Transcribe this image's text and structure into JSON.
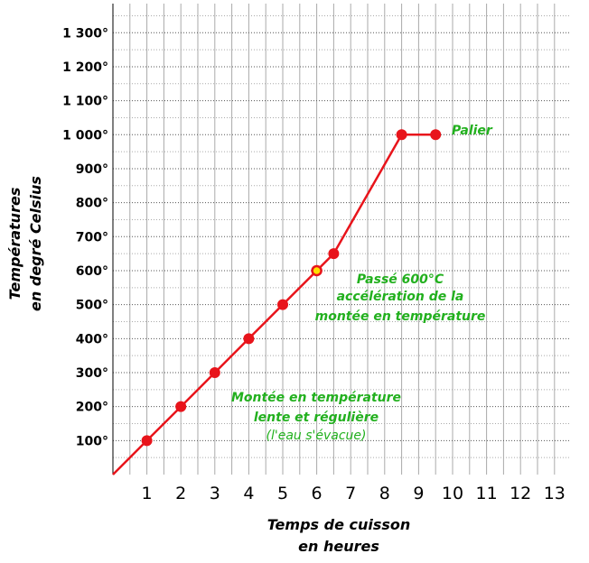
{
  "chart_data": {
    "type": "line",
    "title": "",
    "xlabel": "Temps de cuisson",
    "xlabel2": "en heures",
    "ylabel": "Températures",
    "ylabel2": "en degré Celsius",
    "xlim": [
      0,
      13
    ],
    "ylim": [
      0,
      1400
    ],
    "x_ticks": [
      1,
      2,
      3,
      4,
      5,
      6,
      7,
      8,
      9,
      10,
      11,
      12,
      13
    ],
    "x_tick_labels": [
      "1",
      "2",
      "3",
      "4",
      "5",
      "6",
      "7",
      "8",
      "9",
      "10",
      "11",
      "12",
      "13"
    ],
    "y_ticks": [
      100,
      200,
      300,
      400,
      500,
      600,
      700,
      800,
      900,
      1000,
      1100,
      1200,
      1300
    ],
    "y_tick_labels": [
      "100°",
      "200°",
      "300°",
      "400°",
      "500°",
      "600°",
      "700°",
      "800°",
      "900°",
      "1 000°",
      "1 100°",
      "1 200°",
      "1 300°"
    ],
    "grid": true,
    "series": [
      {
        "name": "Température",
        "color": "#e8141b",
        "x": [
          0,
          1,
          2,
          3,
          4,
          5,
          6,
          6.5,
          8.5,
          9.5
        ],
        "y": [
          0,
          100,
          200,
          300,
          400,
          500,
          600,
          650,
          1000,
          1000
        ]
      }
    ],
    "markers": [
      {
        "x": 1,
        "y": 100,
        "style": "filled"
      },
      {
        "x": 2,
        "y": 200,
        "style": "filled"
      },
      {
        "x": 3,
        "y": 300,
        "style": "filled"
      },
      {
        "x": 4,
        "y": 400,
        "style": "filled"
      },
      {
        "x": 5,
        "y": 500,
        "style": "filled"
      },
      {
        "x": 6,
        "y": 600,
        "style": "highlight"
      },
      {
        "x": 6.5,
        "y": 650,
        "style": "filled"
      },
      {
        "x": 8.5,
        "y": 1000,
        "style": "filled"
      },
      {
        "x": 9.5,
        "y": 1000,
        "style": "filled"
      }
    ],
    "annotations": {
      "palier": "Palier",
      "acceleration": [
        "Passé 600°C",
        "accélération de la",
        "montée en température"
      ],
      "montee": [
        "Montée en température",
        "lente et régulière"
      ],
      "eau": "(l'eau s'évacue)"
    },
    "colors": {
      "line": "#e8141b",
      "annotation": "#22b01e",
      "highlight_fill": "#ffe000",
      "grid": "#aaaaaa",
      "dotted_grid": "#555555"
    }
  }
}
